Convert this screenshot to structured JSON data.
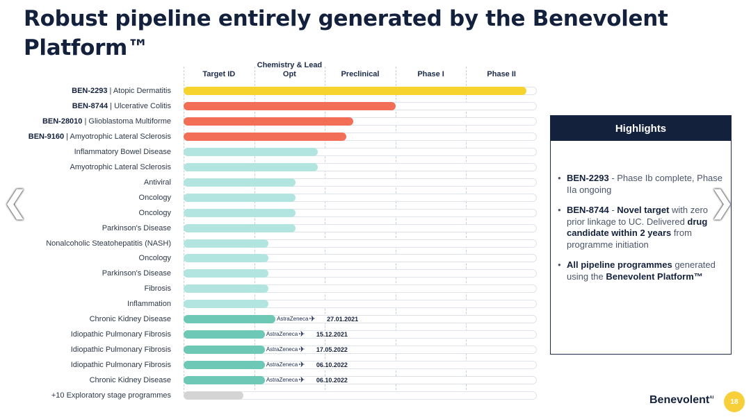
{
  "slide": {
    "title": "Robust pipeline entirely generated by the Benevolent Platform™",
    "page_number": "18",
    "logo_text": "Benevolent",
    "logo_sup": "AI"
  },
  "colors": {
    "yellow": "#f6d32d",
    "coral": "#f26e57",
    "light_teal": "#b2e5df",
    "teal": "#6dc9b6",
    "grey": "#d4d4d4",
    "navy": "#14213d"
  },
  "chart_data": {
    "type": "bar",
    "orientation": "horizontal",
    "phases": [
      "Target ID",
      "Chemistry & Lead Opt",
      "Preclinical",
      "Phase I",
      "Phase II"
    ],
    "programmes": [
      {
        "code": "BEN-2293",
        "name": "Atopic Dermatitis",
        "progress": 4.85,
        "color": "yellow"
      },
      {
        "code": "BEN-8744",
        "name": "Ulcerative Colitis",
        "progress": 3.0,
        "color": "coral"
      },
      {
        "code": "BEN-28010",
        "name": "Glioblastoma Multiforme",
        "progress": 2.4,
        "color": "coral"
      },
      {
        "code": "BEN-9160",
        "name": "Amyotrophic Lateral Sclerosis",
        "progress": 2.3,
        "color": "coral"
      },
      {
        "code": "",
        "name": "Inflammatory Bowel Disease",
        "progress": 1.9,
        "color": "light_teal"
      },
      {
        "code": "",
        "name": "Amyotrophic Lateral Sclerosis",
        "progress": 1.9,
        "color": "light_teal"
      },
      {
        "code": "",
        "name": "Antiviral",
        "progress": 1.58,
        "color": "light_teal"
      },
      {
        "code": "",
        "name": "Oncology",
        "progress": 1.58,
        "color": "light_teal"
      },
      {
        "code": "",
        "name": "Oncology",
        "progress": 1.58,
        "color": "light_teal"
      },
      {
        "code": "",
        "name": "Parkinson's Disease",
        "progress": 1.58,
        "color": "light_teal"
      },
      {
        "code": "",
        "name": "Nonalcoholic Steatohepatitis (NASH)",
        "progress": 1.2,
        "color": "light_teal"
      },
      {
        "code": "",
        "name": "Oncology",
        "progress": 1.2,
        "color": "light_teal"
      },
      {
        "code": "",
        "name": "Parkinson's Disease",
        "progress": 1.2,
        "color": "light_teal"
      },
      {
        "code": "",
        "name": "Fibrosis",
        "progress": 1.2,
        "color": "light_teal"
      },
      {
        "code": "",
        "name": "Inflammation",
        "progress": 1.2,
        "color": "light_teal"
      },
      {
        "code": "",
        "name": "Chronic Kidney Disease",
        "progress": 1.3,
        "color": "teal",
        "partner": "AstraZeneca",
        "date": "27.01.2021"
      },
      {
        "code": "",
        "name": "Idiopathic Pulmonary Fibrosis",
        "progress": 1.15,
        "color": "teal",
        "partner": "AstraZeneca",
        "date": "15.12.2021"
      },
      {
        "code": "",
        "name": "Idiopathic Pulmonary Fibrosis",
        "progress": 1.15,
        "color": "teal",
        "partner": "AstraZeneca",
        "date": "17.05.2022"
      },
      {
        "code": "",
        "name": "Idiopathic Pulmonary Fibrosis",
        "progress": 1.15,
        "color": "teal",
        "partner": "AstraZeneca",
        "date": "06.10.2022"
      },
      {
        "code": "",
        "name": "Chronic Kidney Disease",
        "progress": 1.15,
        "color": "teal",
        "partner": "AstraZeneca",
        "date": "06.10.2022"
      },
      {
        "code": "",
        "name": "+10 Exploratory stage programmes",
        "progress": 0.85,
        "color": "grey"
      }
    ]
  },
  "highlights": {
    "title": "Highlights",
    "items": [
      [
        {
          "t": "BEN-2293",
          "b": true
        },
        {
          "t": " - Phase Ib complete, Phase IIa ongoing",
          "b": false
        }
      ],
      [
        {
          "t": "BEN-8744",
          "b": true
        },
        {
          "t": " - ",
          "b": false
        },
        {
          "t": "Novel target",
          "b": true
        },
        {
          "t": " with zero prior linkage to UC. Delivered ",
          "b": false
        },
        {
          "t": "drug candidate within 2 years",
          "b": true
        },
        {
          "t": " from programme initiation",
          "b": false
        }
      ],
      [
        {
          "t": "All pipeline programmes",
          "b": true
        },
        {
          "t": " generated using the ",
          "b": false
        },
        {
          "t": "Benevolent Platform™",
          "b": true
        }
      ]
    ]
  },
  "nav": {
    "prev_icon": "chevron-left-icon",
    "next_icon": "chevron-right-icon",
    "prev_glyph": "❮",
    "next_glyph": "❯"
  },
  "partner_icon": "astrazeneca-logo-icon"
}
